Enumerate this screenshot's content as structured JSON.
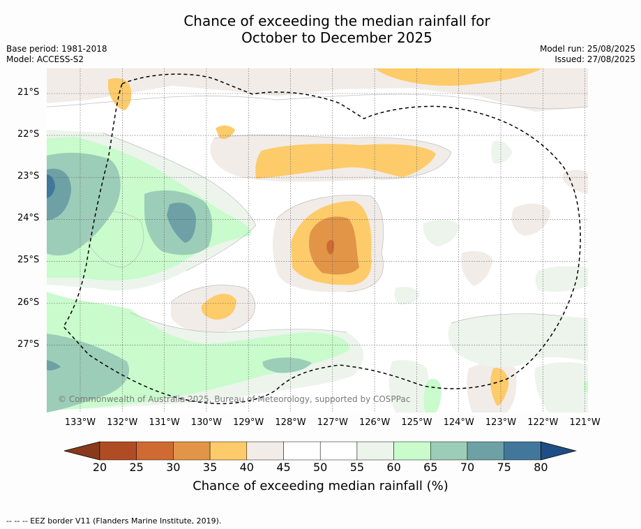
{
  "header": {
    "title_line1": "Chance of exceeding the median rainfall for",
    "title_line2": "October to December 2025",
    "base_period": "Base period: 1981-2018",
    "model": "Model: ACCESS-S2",
    "model_run": "Model run: 25/08/2025",
    "issued": "Issued: 27/08/2025"
  },
  "map": {
    "lon_labels": [
      "133°W",
      "132°W",
      "131°W",
      "130°W",
      "129°W",
      "128°W",
      "127°W",
      "126°W",
      "125°W",
      "124°W",
      "123°W",
      "122°W",
      "121°W"
    ],
    "lat_labels": [
      "21°S",
      "22°S",
      "23°S",
      "24°S",
      "25°S",
      "26°S",
      "27°S"
    ],
    "copyright": "© Commonwealth of Australia 2025, Bureau of Meteorology, supported by COSPPac",
    "colors": {
      "c20_25": "#b04c24",
      "c25_30": "#cf6a33",
      "c30_35": "#e29447",
      "c35_40": "#fdcb6a",
      "c40_45": "#f1ece8",
      "c45_55": "#ffffff",
      "c55_60": "#ecf4ec",
      "c60_65": "#c9fbcc",
      "c65_70": "#9ccdb8",
      "c70_75": "#6ea1a6",
      "c75_80": "#41779a",
      "over80": "#1f4e86"
    }
  },
  "colorbar": {
    "ticks": [
      "20",
      "25",
      "30",
      "35",
      "40",
      "45",
      "50",
      "55",
      "60",
      "65",
      "70",
      "75",
      "80"
    ],
    "label": "Chance of exceeding median rainfall (%)",
    "colors": [
      "#b04c24",
      "#cf6a33",
      "#e29447",
      "#fdcb6a",
      "#f1ece8",
      "#ffffff",
      "#ffffff",
      "#ecf4ec",
      "#c9fbcc",
      "#9ccdb8",
      "#6ea1a6",
      "#41779a"
    ],
    "under_color": "#8a3a1c",
    "over_color": "#1f4e86"
  },
  "footer": {
    "legend": "--  --  -- EEZ border V11 (Flanders Marine Institute, 2019)."
  }
}
